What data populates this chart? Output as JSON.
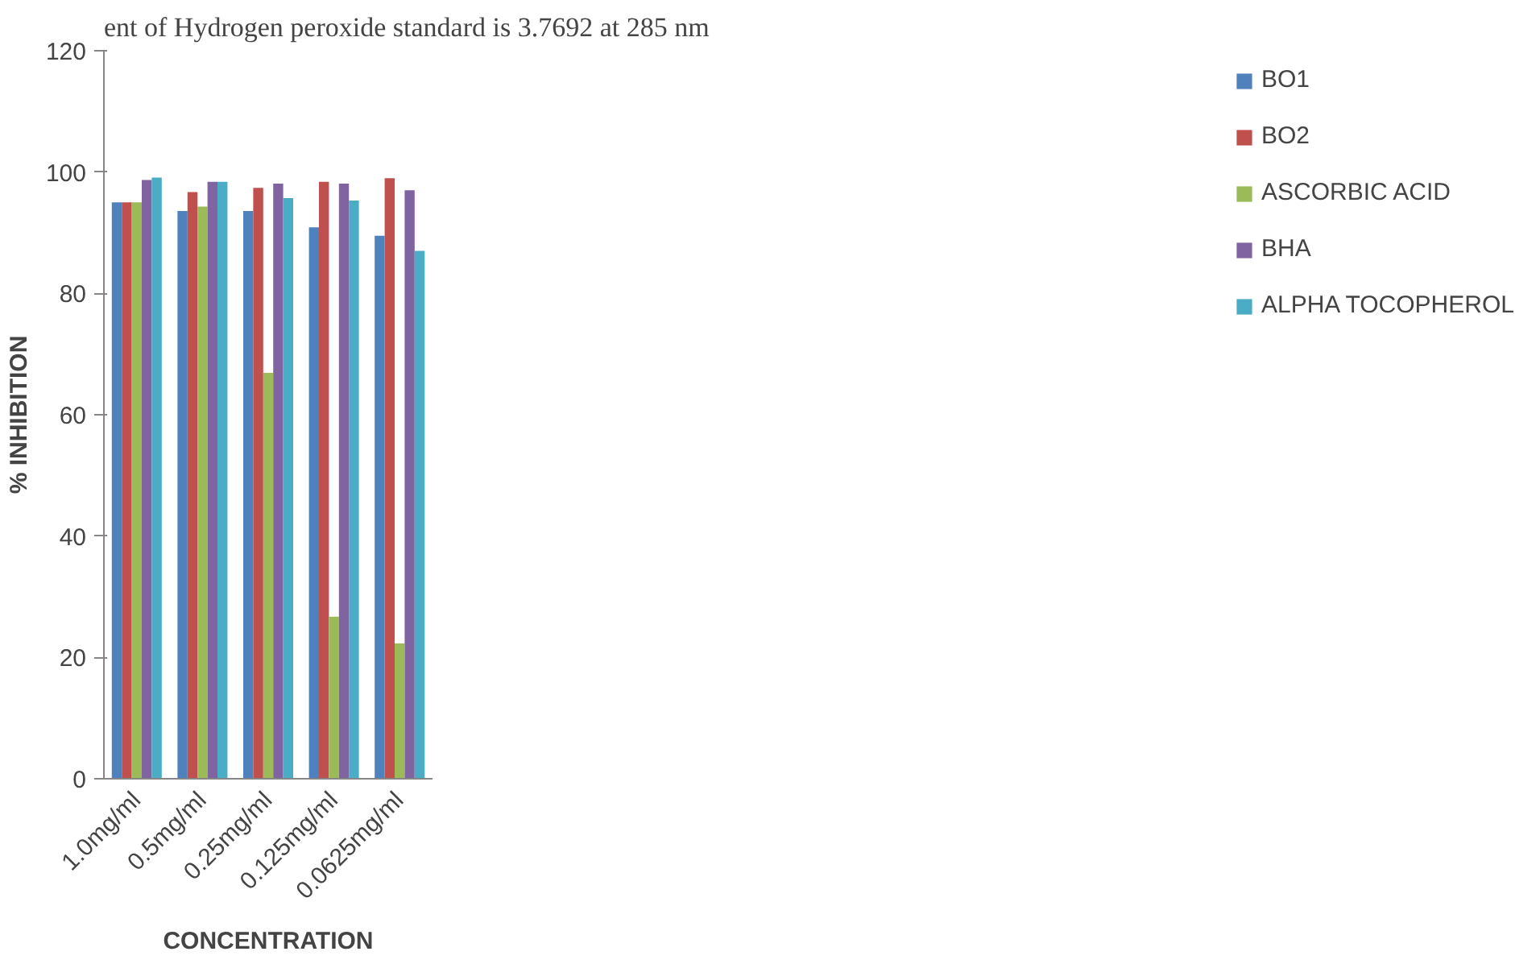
{
  "chart_data": {
    "type": "bar",
    "annotations": [
      "ent of Hydrogen peroxide standard is 3.7692 at 285 nm"
    ],
    "xlabel": "CONCENTRATION",
    "ylabel": "% INHIBITION",
    "categories": [
      "1.0mg/ml",
      "0.5mg/ml",
      "0.25mg/ml",
      "0.125mg/ml",
      "0.0625mg/ml"
    ],
    "series": [
      {
        "name": "BO1",
        "color": "#4f81bd",
        "values": [
          95.0,
          93.6,
          93.6,
          90.9,
          89.5
        ]
      },
      {
        "name": "BO2",
        "color": "#c0504d",
        "values": [
          95.0,
          96.7,
          97.4,
          98.4,
          99.0
        ]
      },
      {
        "name": "ASCORBIC ACID",
        "color": "#9bbb59",
        "values": [
          95.0,
          94.3,
          66.9,
          26.7,
          22.3
        ]
      },
      {
        "name": "BHA",
        "color": "#8064a2",
        "values": [
          98.7,
          98.4,
          98.1,
          98.1,
          97.0
        ]
      },
      {
        "name": "ALPHA TOCOPHEROL",
        "color": "#4bacc6",
        "values": [
          99.1,
          98.4,
          95.7,
          95.3,
          87.0
        ]
      }
    ],
    "ylim": [
      0,
      120
    ],
    "yticks": [
      0,
      20,
      40,
      60,
      80,
      100,
      120
    ],
    "grid": false,
    "legend": "right"
  }
}
